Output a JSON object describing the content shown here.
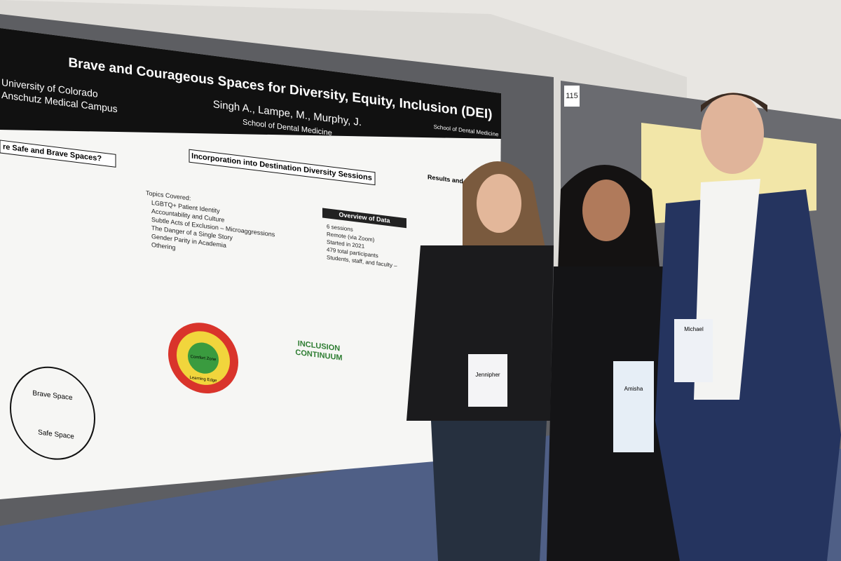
{
  "poster": {
    "title": "Brave and Courageous Spaces for Diversity, Equity, Inclusion (DEI)",
    "institution": [
      "University of Colorado",
      "Anschutz Medical Campus"
    ],
    "authors": "Singh A., Lampe, M., Murphy, J.",
    "department": "School of Dental Medicine",
    "logo_text": "School of Dental Medicine",
    "left_heading": "re Safe and Brave Spaces?",
    "center_heading": "Incorporation into Destination Diversity Sessions",
    "topics_heading": "Topics Covered:",
    "topics": [
      "LGBTQ+ Patient Identity",
      "Accountability and Culture",
      "Subtle Acts of Exclusion – Microaggressions",
      "The Danger of a Single Story",
      "Gender Parity in Academia",
      "Othering"
    ],
    "overview_heading": "Overview of Data",
    "overview": [
      "6 sessions",
      "Remote (via Zoom)",
      "Started in 2021",
      "479 total participants",
      "Students, staff, and faculty –"
    ],
    "results_heading": "Results and Ou",
    "brave_space": "Brave Space",
    "safe_space": "Safe Space",
    "comfort_zone": "Comfort Zone",
    "learning_edge": "Learning Edge",
    "continuum": [
      "INCLUSION",
      "CONTINUUM"
    ]
  },
  "booth_number": "115",
  "badges": [
    "Jennipher",
    "Amisha",
    "Michael"
  ]
}
